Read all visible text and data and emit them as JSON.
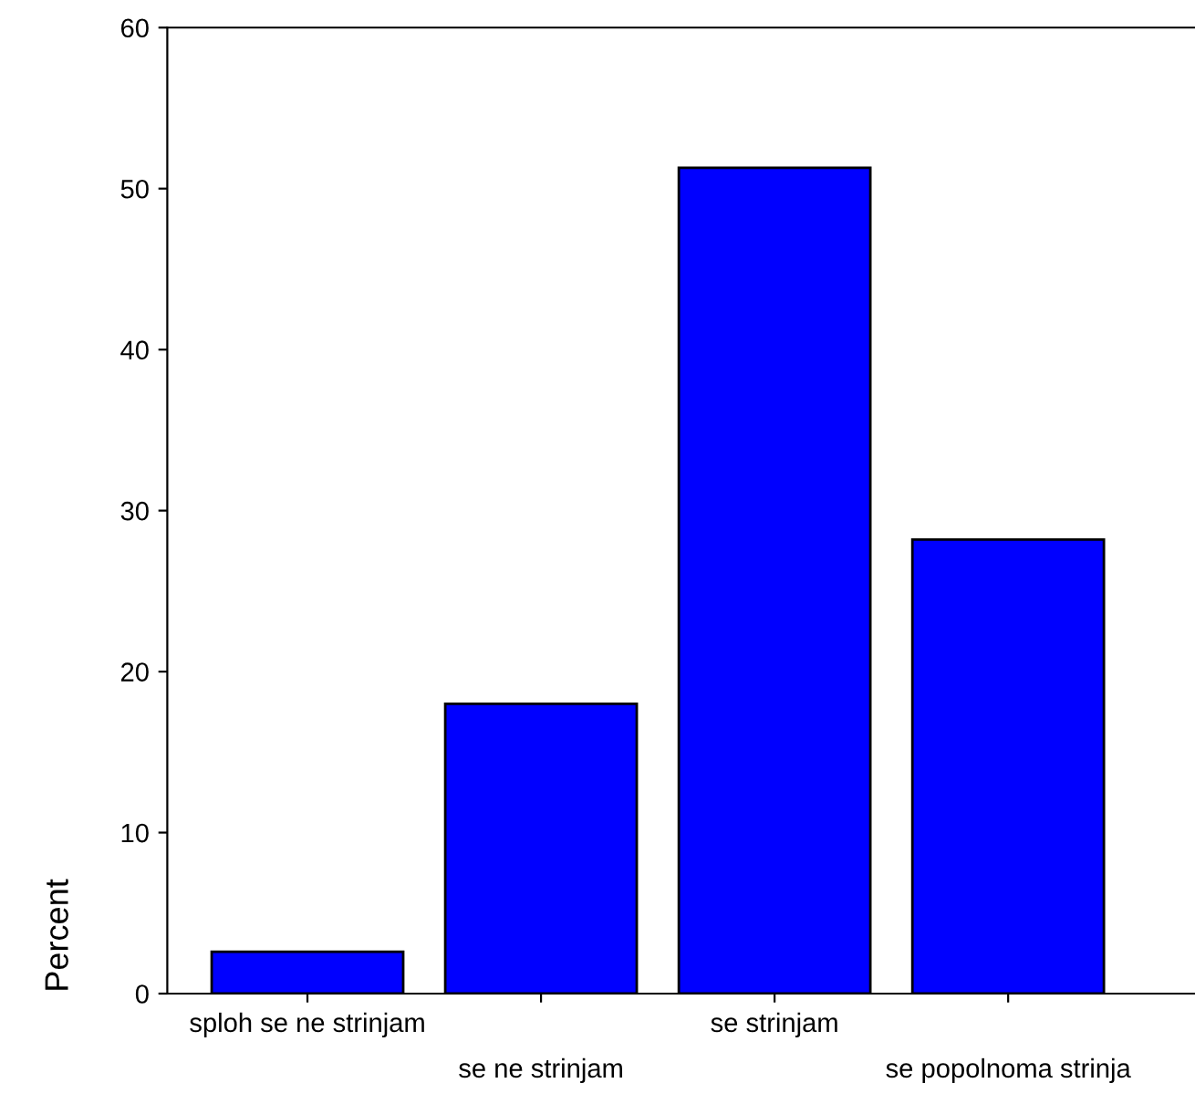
{
  "chart_data": {
    "type": "bar",
    "ylabel": "Percent",
    "categories": [
      "sploh se ne strinjam",
      "se ne strinjam",
      "se strinjam",
      "se popolnoma strinja"
    ],
    "values": [
      2.6,
      18.0,
      51.3,
      28.2
    ],
    "color": "#0000ff",
    "ylim": [
      0,
      60
    ],
    "yticks": [
      0,
      10,
      20,
      30,
      40,
      50,
      60
    ],
    "grid": false
  }
}
